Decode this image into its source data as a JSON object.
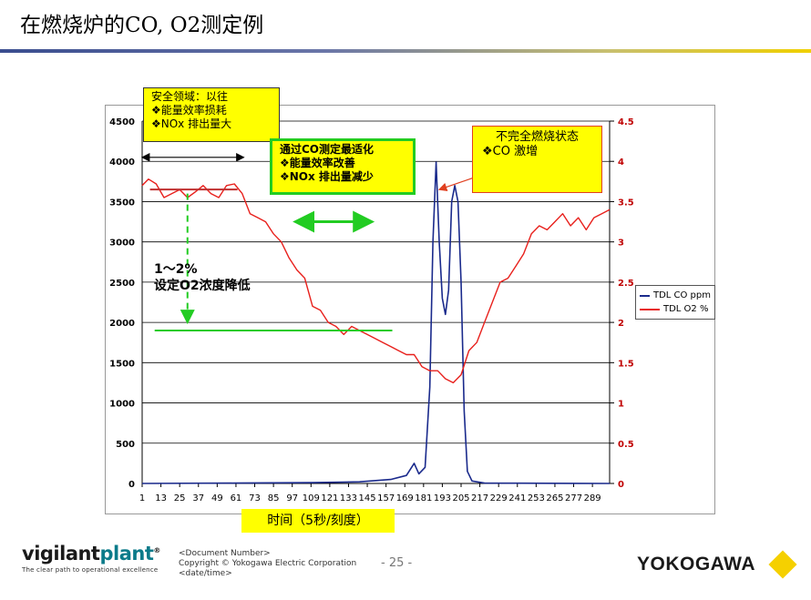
{
  "slide": {
    "title": "在燃烧炉的CO, O2测定例",
    "page_number": "- 25 -",
    "doc_number": "<Document Number>",
    "copyright": "Copyright © Yokogawa Electric Corporation",
    "date": "<date/time>"
  },
  "logos": {
    "vigilant_word_1": "vigilant",
    "vigilant_word_2": "plant",
    "vigilant_reg": "®",
    "vigilant_tagline": "The clear path to operational excellence",
    "yokogawa": "YOKOGAWA"
  },
  "colors": {
    "co_series": "#1a2a8c",
    "o2_series": "#e8201c",
    "callout_fill": "#ffff00",
    "green_marker": "#22cc22",
    "title_rule_start": "#3a4d8f",
    "title_rule_end": "#f0d000"
  },
  "annotations": {
    "safety_box": [
      "安全领域：以往",
      "❖能量效率损耗",
      "❖NOx 排出量大"
    ],
    "optimize_box": [
      "通过CO测定最适化",
      "❖能量效率改善",
      "❖NOx 排出量减少"
    ],
    "co_box_line1": "不完全燃烧状态",
    "co_box_line2": "❖CO 激增",
    "setpoint_line1": "1～2%",
    "setpoint_line2": "设定O2浓度降低"
  },
  "chart_data": {
    "type": "line",
    "title": "",
    "xlabel": "时间（5秒/刻度）",
    "ylabel": "",
    "y_left": {
      "min": 0,
      "max": 4500,
      "step": 500,
      "ticks": [
        "0",
        "500",
        "1000",
        "1500",
        "2000",
        "2500",
        "3000",
        "3500",
        "4000",
        "4500"
      ]
    },
    "y_right": {
      "min": 0,
      "max": 4.5,
      "step": 0.5,
      "ticks": [
        "0",
        "0.5",
        "1",
        "1.5",
        "2",
        "2.5",
        "3",
        "3.5",
        "4",
        "4.5"
      ]
    },
    "x_ticks": [
      "1",
      "13",
      "25",
      "37",
      "49",
      "61",
      "73",
      "85",
      "97",
      "109",
      "121",
      "133",
      "145",
      "157",
      "169",
      "181",
      "193",
      "205",
      "217",
      "229",
      "241",
      "253",
      "265",
      "277",
      "289"
    ],
    "x_range": [
      1,
      300
    ],
    "grid": true,
    "legend_position": "right",
    "series": [
      {
        "name": "TDL CO ppm",
        "axis": "left",
        "color": "#1a2a8c",
        "points": [
          [
            1,
            0
          ],
          [
            60,
            5
          ],
          [
            110,
            10
          ],
          [
            140,
            20
          ],
          [
            160,
            50
          ],
          [
            170,
            100
          ],
          [
            175,
            250
          ],
          [
            178,
            120
          ],
          [
            182,
            200
          ],
          [
            185,
            1200
          ],
          [
            187,
            3000
          ],
          [
            189,
            3990
          ],
          [
            191,
            3000
          ],
          [
            193,
            2300
          ],
          [
            195,
            2100
          ],
          [
            197,
            2400
          ],
          [
            199,
            3500
          ],
          [
            201,
            3700
          ],
          [
            203,
            3500
          ],
          [
            205,
            2500
          ],
          [
            207,
            900
          ],
          [
            209,
            150
          ],
          [
            212,
            30
          ],
          [
            220,
            5
          ],
          [
            300,
            0
          ]
        ]
      },
      {
        "name": "TDL O2 %",
        "axis": "right",
        "color": "#e8201c",
        "points": [
          [
            1,
            3.7
          ],
          [
            5,
            3.78
          ],
          [
            10,
            3.72
          ],
          [
            15,
            3.55
          ],
          [
            20,
            3.6
          ],
          [
            25,
            3.65
          ],
          [
            30,
            3.55
          ],
          [
            35,
            3.62
          ],
          [
            40,
            3.7
          ],
          [
            45,
            3.6
          ],
          [
            50,
            3.55
          ],
          [
            55,
            3.7
          ],
          [
            60,
            3.72
          ],
          [
            65,
            3.6
          ],
          [
            70,
            3.35
          ],
          [
            75,
            3.3
          ],
          [
            80,
            3.25
          ],
          [
            85,
            3.1
          ],
          [
            90,
            3.0
          ],
          [
            95,
            2.8
          ],
          [
            100,
            2.65
          ],
          [
            105,
            2.55
          ],
          [
            110,
            2.2
          ],
          [
            115,
            2.15
          ],
          [
            120,
            2.0
          ],
          [
            125,
            1.95
          ],
          [
            130,
            1.85
          ],
          [
            135,
            1.95
          ],
          [
            140,
            1.9
          ],
          [
            145,
            1.85
          ],
          [
            150,
            1.8
          ],
          [
            155,
            1.75
          ],
          [
            160,
            1.7
          ],
          [
            165,
            1.65
          ],
          [
            170,
            1.6
          ],
          [
            175,
            1.6
          ],
          [
            180,
            1.45
          ],
          [
            185,
            1.4
          ],
          [
            190,
            1.4
          ],
          [
            195,
            1.3
          ],
          [
            200,
            1.25
          ],
          [
            205,
            1.35
          ],
          [
            210,
            1.65
          ],
          [
            215,
            1.75
          ],
          [
            220,
            2.0
          ],
          [
            225,
            2.25
          ],
          [
            230,
            2.5
          ],
          [
            235,
            2.55
          ],
          [
            240,
            2.7
          ],
          [
            245,
            2.85
          ],
          [
            250,
            3.1
          ],
          [
            255,
            3.2
          ],
          [
            260,
            3.15
          ],
          [
            265,
            3.25
          ],
          [
            270,
            3.35
          ],
          [
            275,
            3.2
          ],
          [
            280,
            3.3
          ],
          [
            285,
            3.15
          ],
          [
            290,
            3.3
          ],
          [
            295,
            3.35
          ],
          [
            300,
            3.4
          ]
        ]
      }
    ]
  }
}
